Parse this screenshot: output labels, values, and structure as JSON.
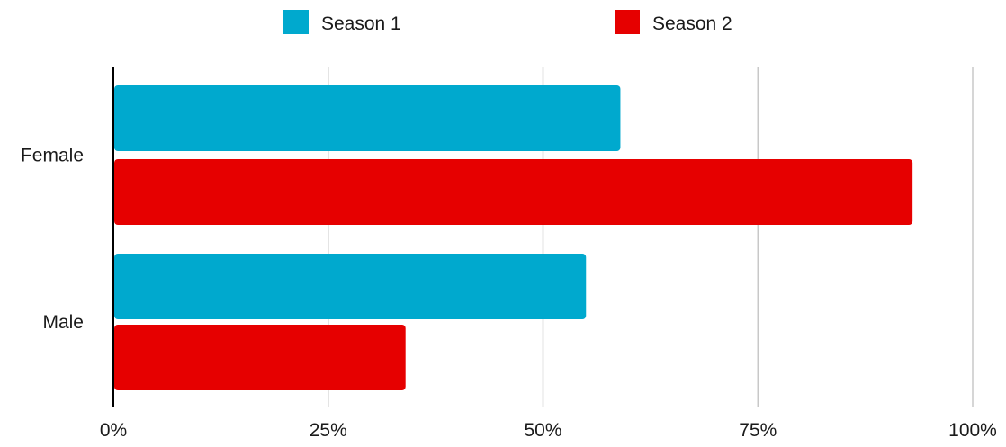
{
  "chart_data": {
    "type": "bar",
    "orientation": "horizontal",
    "categories": [
      "Female",
      "Male"
    ],
    "series": [
      {
        "name": "Season 1",
        "color": "#00a9ce",
        "values": [
          59,
          55
        ]
      },
      {
        "name": "Season 2",
        "color": "#e60000",
        "values": [
          93,
          34
        ]
      }
    ],
    "xlim": [
      0,
      100
    ],
    "xticks": [
      "0%",
      "25%",
      "50%",
      "75%",
      "100%"
    ],
    "tick_values": [
      0,
      25,
      50,
      75,
      100
    ],
    "grid": true,
    "legend_position": "top"
  }
}
